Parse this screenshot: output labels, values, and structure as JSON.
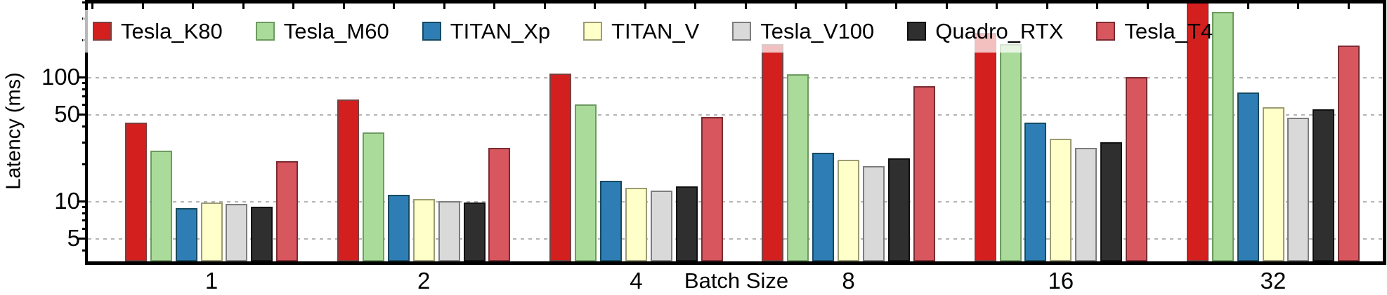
{
  "chart_data": {
    "type": "bar",
    "title": "",
    "xlabel": "Batch Size",
    "ylabel": "Latency (ms)",
    "yscale": "log",
    "ylim": [
      3.5,
      410
    ],
    "grid": "horizontal dotted lines at labeled ticks",
    "legend_position": "top inside, single row, semi-transparent white box",
    "yticks": {
      "values": [
        100,
        50,
        10,
        5
      ],
      "labels": [
        "100",
        "50",
        "10",
        "5"
      ]
    },
    "categories": [
      "1",
      "2",
      "4",
      "8",
      "16",
      "32"
    ],
    "series": [
      {
        "name": "Tesla_K80",
        "fill": "#d41f1f",
        "edge": "#7a4040",
        "values": [
          43,
          66,
          107,
          184,
          228,
          420
        ]
      },
      {
        "name": "Tesla_M60",
        "fill": "#abdb9b",
        "edge": "#6d9a60",
        "values": [
          25.5,
          36,
          60,
          105,
          184,
          336
        ]
      },
      {
        "name": "TITAN_Xp",
        "fill": "#2e7eb5",
        "edge": "#164a60",
        "values": [
          8.8,
          11.3,
          14.5,
          24.6,
          43,
          75
        ]
      },
      {
        "name": "TITAN_V",
        "fill": "#ffffc9",
        "edge": "#9c9c74",
        "values": [
          9.7,
          10.4,
          12.8,
          21.6,
          32,
          57
        ]
      },
      {
        "name": "Tesla_V100",
        "fill": "#d9d9d9",
        "edge": "#7d7d7d",
        "values": [
          9.5,
          10.0,
          12.1,
          19.2,
          27,
          47
        ]
      },
      {
        "name": "Quadro_RTX",
        "fill": "#2f2f2f",
        "edge": "#101010",
        "values": [
          9.0,
          9.7,
          13.1,
          22.0,
          30,
          55
        ]
      },
      {
        "name": "Tesla_T4",
        "fill": "#d8575f",
        "edge": "#7c2b31",
        "values": [
          21,
          27,
          47.5,
          84,
          100,
          179
        ]
      }
    ],
    "note_clipping": "Tesla_K80 at batch 32 extends beyond the top of the axes"
  }
}
